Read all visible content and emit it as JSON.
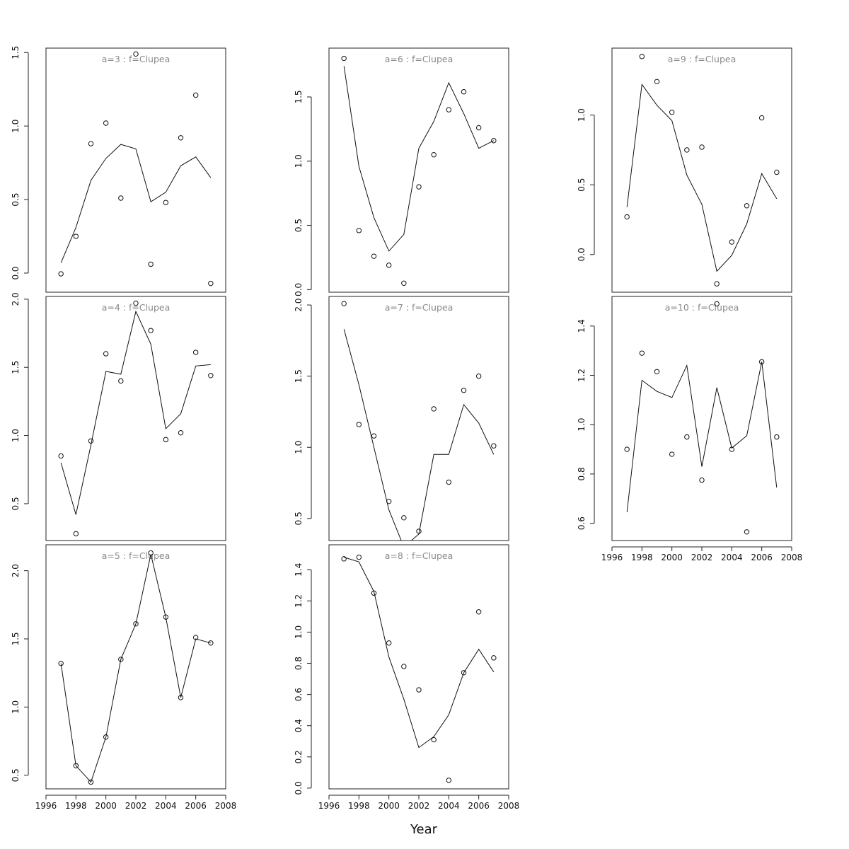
{
  "figure": {
    "xlabel": "Year"
  },
  "chart_data": [
    {
      "type": "line",
      "title": "a=3  :  f=Clupea",
      "x": [
        1997,
        1998,
        1999,
        2000,
        2001,
        2002,
        2003,
        2004,
        2005,
        2006,
        2007
      ],
      "series": [
        {
          "kind": "line",
          "values": [
            0.07,
            0.31,
            0.63,
            0.78,
            0.875,
            0.845,
            0.485,
            0.55,
            0.73,
            0.79,
            0.65
          ]
        },
        {
          "kind": "points",
          "values": [
            -0.005,
            0.25,
            0.88,
            1.02,
            0.51,
            1.49,
            0.06,
            0.48,
            0.92,
            1.21,
            -0.07
          ]
        }
      ],
      "xlim": [
        1996,
        2008
      ],
      "ylim": [
        -0.13,
        1.53
      ],
      "xticks": [],
      "yticks": [
        0.0,
        0.5,
        1.0,
        1.5
      ]
    },
    {
      "type": "line",
      "title": "a=6  :  f=Clupea",
      "x": [
        1997,
        1998,
        1999,
        2000,
        2001,
        2002,
        2003,
        2004,
        2005,
        2006,
        2007
      ],
      "series": [
        {
          "kind": "line",
          "values": [
            1.74,
            0.96,
            0.56,
            0.3,
            0.43,
            1.1,
            1.31,
            1.61,
            1.37,
            1.1,
            1.16
          ]
        },
        {
          "kind": "points",
          "values": [
            1.8,
            0.46,
            0.26,
            0.19,
            0.05,
            0.8,
            1.05,
            1.4,
            1.54,
            1.26,
            1.16
          ]
        }
      ],
      "xlim": [
        1996,
        2008
      ],
      "ylim": [
        -0.02,
        1.88
      ],
      "xticks": [],
      "yticks": [
        0.0,
        0.5,
        1.0,
        1.5
      ]
    },
    {
      "type": "line",
      "title": "a=9  :  f=Clupea",
      "x": [
        1997,
        1998,
        1999,
        2000,
        2001,
        2002,
        2003,
        2004,
        2005,
        2006,
        2007
      ],
      "series": [
        {
          "kind": "line",
          "values": [
            0.34,
            1.22,
            1.07,
            0.96,
            0.57,
            0.36,
            -0.12,
            -0.005,
            0.22,
            0.58,
            0.4
          ]
        },
        {
          "kind": "points",
          "values": [
            0.27,
            1.42,
            1.24,
            1.02,
            0.75,
            0.77,
            -0.21,
            0.09,
            0.35,
            0.98,
            0.59
          ]
        }
      ],
      "xlim": [
        1996,
        2008
      ],
      "ylim": [
        -0.27,
        1.48
      ],
      "xticks": [],
      "yticks": [
        0.0,
        0.5,
        1.0
      ]
    },
    {
      "type": "line",
      "title": "a=4  :  f=Clupea",
      "x": [
        1997,
        1998,
        1999,
        2000,
        2001,
        2002,
        2003,
        2004,
        2005,
        2006,
        2007
      ],
      "series": [
        {
          "kind": "line",
          "values": [
            0.8,
            0.42,
            0.93,
            1.47,
            1.45,
            1.91,
            1.67,
            1.05,
            1.16,
            1.51,
            1.52
          ]
        },
        {
          "kind": "points",
          "values": [
            0.85,
            0.28,
            0.96,
            1.6,
            1.4,
            1.97,
            1.77,
            0.97,
            1.02,
            1.61,
            1.44
          ]
        }
      ],
      "xlim": [
        1996,
        2008
      ],
      "ylim": [
        0.23,
        2.02
      ],
      "xticks": [],
      "yticks": [
        0.5,
        1.0,
        1.5,
        2.0
      ]
    },
    {
      "type": "line",
      "title": "a=7  :  f=Clupea",
      "x": [
        1997,
        1998,
        1999,
        2000,
        2001,
        2002,
        2003,
        2004,
        2005,
        2006,
        2007
      ],
      "series": [
        {
          "kind": "line",
          "values": [
            1.83,
            1.44,
            1.0,
            0.56,
            0.3,
            0.39,
            0.95,
            0.95,
            1.3,
            1.17,
            0.95
          ]
        },
        {
          "kind": "points",
          "values": [
            2.01,
            1.16,
            1.08,
            0.62,
            0.505,
            0.41,
            1.27,
            0.755,
            1.4,
            1.5,
            1.01
          ]
        }
      ],
      "xlim": [
        1996,
        2008
      ],
      "ylim": [
        0.345,
        2.06
      ],
      "xticks": [],
      "yticks": [
        0.5,
        1.0,
        1.5,
        2.0
      ]
    },
    {
      "type": "line",
      "title": "a=10  :  f=Clupea",
      "x": [
        1997,
        1998,
        1999,
        2000,
        2001,
        2002,
        2003,
        2004,
        2005,
        2006,
        2007
      ],
      "series": [
        {
          "kind": "line",
          "values": [
            0.645,
            1.18,
            1.135,
            1.11,
            1.24,
            0.83,
            1.15,
            0.905,
            0.955,
            1.255,
            0.745
          ]
        },
        {
          "kind": "points",
          "values": [
            0.9,
            1.29,
            1.215,
            0.88,
            0.95,
            0.775,
            1.49,
            0.9,
            0.565,
            1.255,
            0.95
          ]
        }
      ],
      "xlim": [
        1996,
        2008
      ],
      "ylim": [
        0.53,
        1.52
      ],
      "xticks": [
        1996,
        1998,
        2000,
        2002,
        2004,
        2006,
        2008
      ],
      "yticks": [
        0.6,
        0.8,
        1.0,
        1.2,
        1.4
      ]
    },
    {
      "type": "line",
      "title": "a=5  :  f=Clupea",
      "x": [
        1997,
        1998,
        1999,
        2000,
        2001,
        2002,
        2003,
        2004,
        2005,
        2006,
        2007
      ],
      "series": [
        {
          "kind": "line",
          "values": [
            1.32,
            0.57,
            0.45,
            0.78,
            1.35,
            1.61,
            2.12,
            1.66,
            1.07,
            1.5,
            1.47
          ]
        },
        {
          "kind": "points",
          "values": [
            1.32,
            0.57,
            0.45,
            0.78,
            1.35,
            1.61,
            2.13,
            1.66,
            1.07,
            1.51,
            1.47
          ]
        }
      ],
      "xlim": [
        1996,
        2008
      ],
      "ylim": [
        0.4,
        2.19
      ],
      "xticks": [
        1996,
        1998,
        2000,
        2002,
        2004,
        2006,
        2008
      ],
      "yticks": [
        0.5,
        1.0,
        1.5,
        2.0
      ]
    },
    {
      "type": "line",
      "title": "a=8  :  f=Clupea",
      "x": [
        1997,
        1998,
        1999,
        2000,
        2001,
        2002,
        2003,
        2004,
        2005,
        2006,
        2007
      ],
      "series": [
        {
          "kind": "line",
          "values": [
            1.48,
            1.45,
            1.26,
            0.84,
            0.57,
            0.26,
            0.33,
            0.47,
            0.74,
            0.89,
            0.745
          ]
        },
        {
          "kind": "points",
          "values": [
            1.47,
            1.48,
            1.25,
            0.93,
            0.78,
            0.63,
            0.31,
            0.05,
            0.74,
            1.13,
            0.835
          ]
        }
      ],
      "xlim": [
        1996,
        2008
      ],
      "ylim": [
        -0.005,
        1.56
      ],
      "xticks": [
        1996,
        1998,
        2000,
        2002,
        2004,
        2006,
        2008
      ],
      "yticks": [
        0.0,
        0.2,
        0.4,
        0.6,
        0.8,
        1.0,
        1.2,
        1.4
      ]
    }
  ]
}
